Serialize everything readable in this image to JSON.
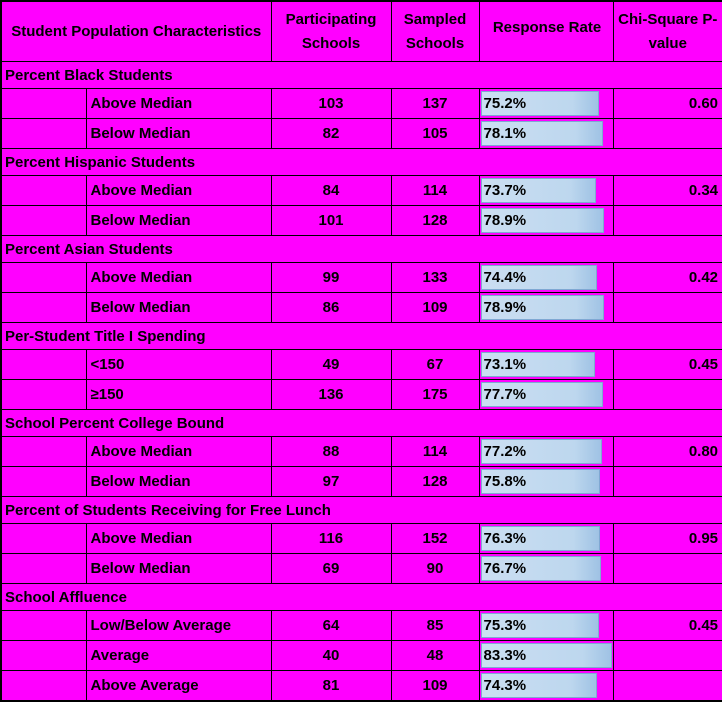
{
  "colors": {
    "background": "#FF00FF",
    "grid_border": "#000000",
    "text": "#000000",
    "bar_fill": "#BDD7EE",
    "bar_border": "#7FA8D2"
  },
  "chart_data": {
    "type": "table",
    "columns": [
      "Student Population Characteristics",
      "Participating Schools",
      "Sampled Schools",
      "Response Rate",
      "Chi-Square P-value"
    ],
    "bar": {
      "column": "Response Rate",
      "min": 0,
      "max": 83.3,
      "style": "data-bar"
    },
    "groups": [
      {
        "title": "Percent Black Students",
        "rows": [
          {
            "label": "Above Median",
            "participating": 103,
            "sampled": 137,
            "response_rate": "75.2%",
            "rate_value": 75.2,
            "p_value": "0.60"
          },
          {
            "label": "Below Median",
            "participating": 82,
            "sampled": 105,
            "response_rate": "78.1%",
            "rate_value": 78.1,
            "p_value": ""
          }
        ]
      },
      {
        "title": "Percent Hispanic Students",
        "rows": [
          {
            "label": "Above Median",
            "participating": 84,
            "sampled": 114,
            "response_rate": "73.7%",
            "rate_value": 73.7,
            "p_value": "0.34"
          },
          {
            "label": "Below Median",
            "participating": 101,
            "sampled": 128,
            "response_rate": "78.9%",
            "rate_value": 78.9,
            "p_value": ""
          }
        ]
      },
      {
        "title": "Percent Asian Students",
        "rows": [
          {
            "label": "Above Median",
            "participating": 99,
            "sampled": 133,
            "response_rate": "74.4%",
            "rate_value": 74.4,
            "p_value": "0.42"
          },
          {
            "label": "Below Median",
            "participating": 86,
            "sampled": 109,
            "response_rate": "78.9%",
            "rate_value": 78.9,
            "p_value": ""
          }
        ]
      },
      {
        "title": "Per-Student Title I Spending",
        "rows": [
          {
            "label": "<150",
            "participating": 49,
            "sampled": 67,
            "response_rate": "73.1%",
            "rate_value": 73.1,
            "p_value": "0.45"
          },
          {
            "label": "≥150",
            "participating": 136,
            "sampled": 175,
            "response_rate": "77.7%",
            "rate_value": 77.7,
            "p_value": ""
          }
        ]
      },
      {
        "title": "School Percent College Bound",
        "rows": [
          {
            "label": "Above Median",
            "participating": 88,
            "sampled": 114,
            "response_rate": "77.2%",
            "rate_value": 77.2,
            "p_value": "0.80"
          },
          {
            "label": "Below Median",
            "participating": 97,
            "sampled": 128,
            "response_rate": "75.8%",
            "rate_value": 75.8,
            "p_value": ""
          }
        ]
      },
      {
        "title": "Percent of Students Receiving for Free Lunch",
        "rows": [
          {
            "label": "Above Median",
            "participating": 116,
            "sampled": 152,
            "response_rate": "76.3%",
            "rate_value": 76.3,
            "p_value": "0.95"
          },
          {
            "label": "Below Median",
            "participating": 69,
            "sampled": 90,
            "response_rate": "76.7%",
            "rate_value": 76.7,
            "p_value": ""
          }
        ]
      },
      {
        "title": "School Affluence",
        "rows": [
          {
            "label": "Low/Below Average",
            "participating": 64,
            "sampled": 85,
            "response_rate": "75.3%",
            "rate_value": 75.3,
            "p_value": "0.45"
          },
          {
            "label": "Average",
            "participating": 40,
            "sampled": 48,
            "response_rate": "83.3%",
            "rate_value": 83.3,
            "p_value": ""
          },
          {
            "label": "Above Average",
            "participating": 81,
            "sampled": 109,
            "response_rate": "74.3%",
            "rate_value": 74.3,
            "p_value": ""
          }
        ]
      }
    ]
  }
}
